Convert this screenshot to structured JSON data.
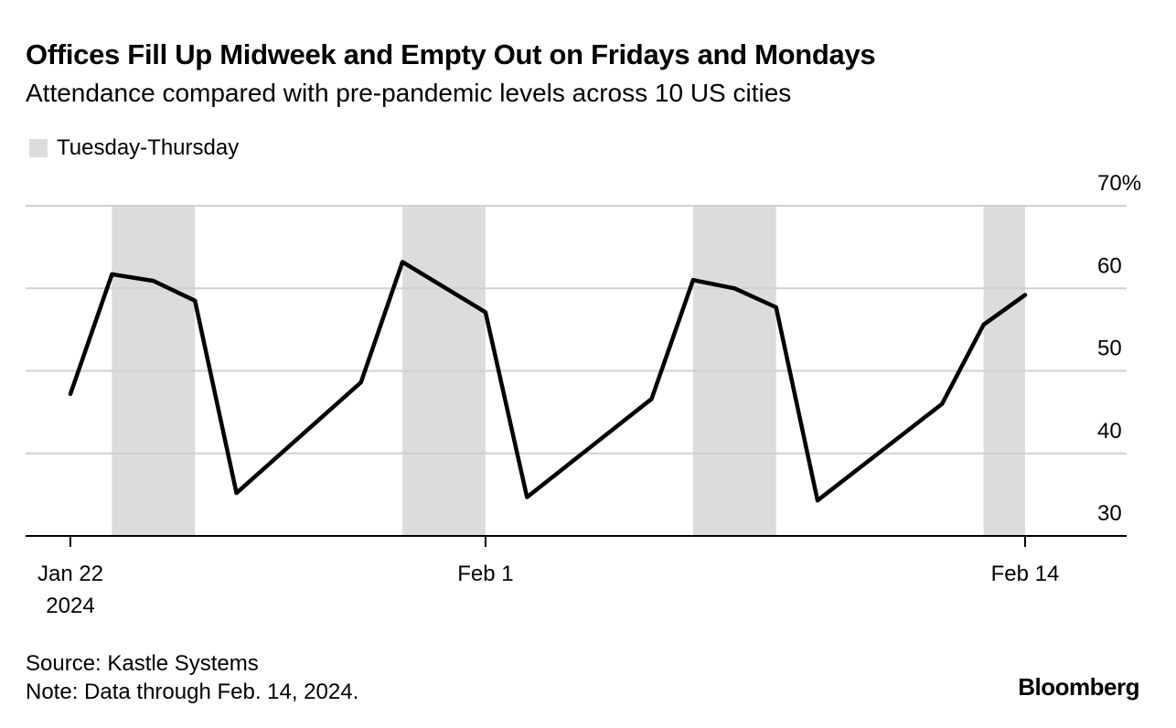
{
  "header": {
    "title": "Offices Fill Up Midweek and Empty Out on Fridays and Mondays",
    "subtitle": "Attendance compared with pre-pandemic levels across 10 US cities"
  },
  "legend": {
    "label": "Tuesday-Thursday",
    "color": "#dcdcdc"
  },
  "footer": {
    "source": "Source: Kastle Systems",
    "note": "Note: Data through Feb. 14, 2024.",
    "logo": "Bloomberg"
  },
  "chart_data": {
    "type": "line",
    "x_start": "2024-01-22",
    "x_end": "2024-02-14",
    "ylim": [
      30,
      70
    ],
    "yticks": [
      30,
      40,
      50,
      60,
      70
    ],
    "ytick_labels": [
      "30",
      "40",
      "50",
      "60",
      "70%"
    ],
    "xticks": [
      {
        "date": "2024-01-22",
        "lines": [
          "Jan 22",
          "2024"
        ]
      },
      {
        "date": "2024-02-01",
        "lines": [
          "Feb 1"
        ]
      },
      {
        "date": "2024-02-14",
        "lines": [
          "Feb 14"
        ]
      }
    ],
    "shaded_ranges": [
      [
        "2024-01-23",
        "2024-01-25"
      ],
      [
        "2024-01-30",
        "2024-02-01"
      ],
      [
        "2024-02-06",
        "2024-02-08"
      ],
      [
        "2024-02-13",
        "2024-02-14"
      ]
    ],
    "series": [
      {
        "color": "#000000",
        "points": [
          [
            "2024-01-22",
            47.2
          ],
          [
            "2024-01-23",
            61.7
          ],
          [
            "2024-01-24",
            60.9
          ],
          [
            "2024-01-25",
            58.5
          ],
          [
            "2024-01-26",
            35.2
          ],
          [
            "2024-01-29",
            48.6
          ],
          [
            "2024-01-30",
            63.2
          ],
          [
            "2024-02-01",
            57.1
          ],
          [
            "2024-02-02",
            34.7
          ],
          [
            "2024-02-05",
            46.6
          ],
          [
            "2024-02-06",
            61.0
          ],
          [
            "2024-02-07",
            60.0
          ],
          [
            "2024-02-08",
            57.7
          ],
          [
            "2024-02-09",
            34.3
          ],
          [
            "2024-02-12",
            46.0
          ],
          [
            "2024-02-13",
            55.6
          ],
          [
            "2024-02-14",
            59.2
          ]
        ]
      }
    ],
    "grid": true
  }
}
